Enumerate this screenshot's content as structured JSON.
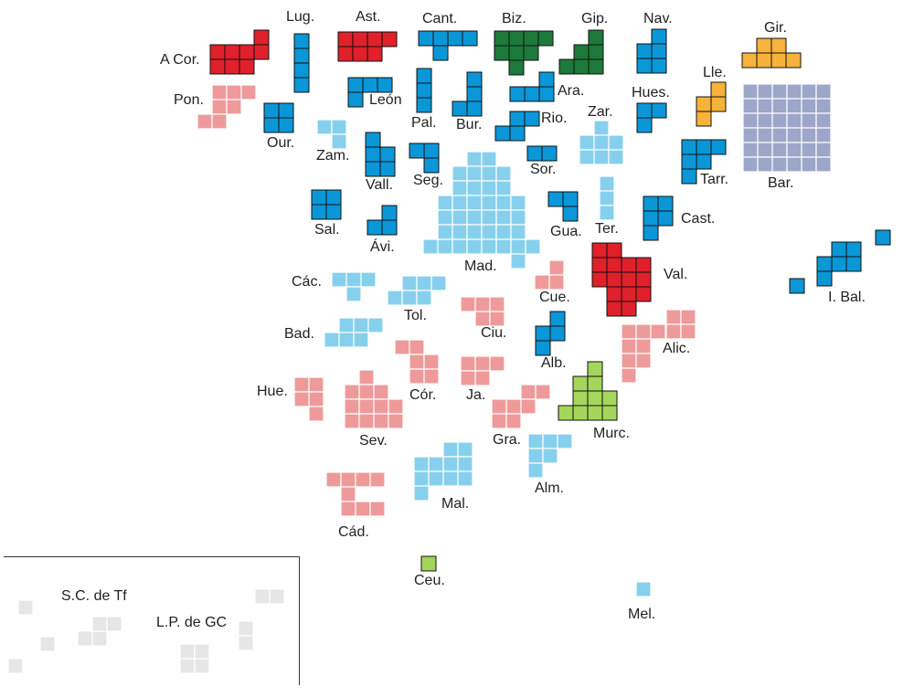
{
  "colors": {
    "red": "#e0202a",
    "darkblue": "#0a97d8",
    "lightblue": "#86d0ee",
    "pink": "#ef9a9a",
    "green": "#1d7a3a",
    "orange": "#f6b23a",
    "lavender": "#9ba6c8",
    "lime": "#a3d65a",
    "gray": "#e6e6e6"
  },
  "provinces": [
    {
      "label": "A Cor.",
      "color": "red"
    },
    {
      "label": "Lug.",
      "color": "darkblue"
    },
    {
      "label": "Ast.",
      "color": "red"
    },
    {
      "label": "Cant.",
      "color": "darkblue"
    },
    {
      "label": "Biz.",
      "color": "green"
    },
    {
      "label": "Gip.",
      "color": "green"
    },
    {
      "label": "Nav.",
      "color": "darkblue"
    },
    {
      "label": "Gir.",
      "color": "orange"
    },
    {
      "label": "Pon.",
      "color": "pink"
    },
    {
      "label": "Ourense",
      "short": "Our.",
      "color": "darkblue"
    },
    {
      "label": "León",
      "short": "León",
      "color": "darkblue"
    },
    {
      "label": "Pal.",
      "color": "darkblue"
    },
    {
      "label": "Bur.",
      "color": "darkblue"
    },
    {
      "label": "Ara.",
      "color": "darkblue"
    },
    {
      "label": "Hues.",
      "color": "darkblue"
    },
    {
      "label": "Lle.",
      "color": "orange"
    },
    {
      "label": "Bar.",
      "color": "lavender"
    },
    {
      "label": "Rio.",
      "color": "darkblue"
    },
    {
      "label": "Zar.",
      "color": "lightblue"
    },
    {
      "label": "Zam.",
      "color": "lightblue"
    },
    {
      "label": "Vall.",
      "color": "darkblue"
    },
    {
      "label": "Seg.",
      "color": "darkblue"
    },
    {
      "label": "Sor.",
      "color": "darkblue"
    },
    {
      "label": "Tarr.",
      "color": "darkblue"
    },
    {
      "label": "Sal.",
      "color": "darkblue"
    },
    {
      "label": "Ávi.",
      "color": "darkblue"
    },
    {
      "label": "Mad.",
      "color": "lightblue"
    },
    {
      "label": "Gua.",
      "color": "darkblue"
    },
    {
      "label": "Ter.",
      "color": "lightblue"
    },
    {
      "label": "Cast.",
      "color": "darkblue"
    },
    {
      "label": "I. Bal.",
      "color": "darkblue"
    },
    {
      "label": "Các.",
      "color": "lightblue"
    },
    {
      "label": "Tol.",
      "color": "lightblue"
    },
    {
      "label": "Cue.",
      "color": "pink"
    },
    {
      "label": "Val.",
      "color": "red"
    },
    {
      "label": "Bad.",
      "color": "lightblue"
    },
    {
      "label": "Ciu.",
      "color": "pink"
    },
    {
      "label": "Alb.",
      "color": "darkblue"
    },
    {
      "label": "Alic.",
      "color": "pink"
    },
    {
      "label": "Hue.",
      "color": "pink"
    },
    {
      "label": "Cór.",
      "color": "pink"
    },
    {
      "label": "Ja.",
      "color": "pink"
    },
    {
      "label": "Sev.",
      "color": "pink"
    },
    {
      "label": "Gra.",
      "color": "pink"
    },
    {
      "label": "Murc.",
      "color": "lime"
    },
    {
      "label": "Mal.",
      "color": "lightblue"
    },
    {
      "label": "Alm.",
      "color": "lightblue"
    },
    {
      "label": "Cád.",
      "color": "pink"
    },
    {
      "label": "Ceu.",
      "color": "lime"
    },
    {
      "label": "Mel.",
      "color": "lightblue"
    },
    {
      "label": "S.C. de Tf",
      "color": "gray"
    },
    {
      "label": "L.P. de GC",
      "color": "gray"
    }
  ]
}
